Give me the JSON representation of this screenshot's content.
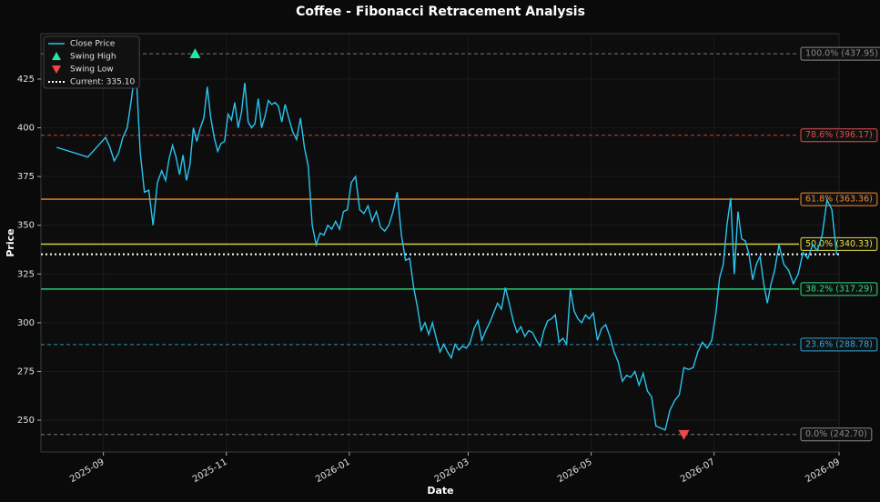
{
  "chart_data": {
    "type": "line",
    "title": "Coffee - Fibonacci Retracement Analysis",
    "x_label": "Date",
    "y_label": "Price",
    "x": [
      "2025-08",
      "2025-08",
      "2025-09",
      "2025-09",
      "2025-09",
      "2025-09",
      "2025-09",
      "2025-09",
      "2025-09",
      "2025-09",
      "2025-09",
      "2025-09",
      "2025-09",
      "2025-09",
      "2025-09",
      "2025-09",
      "2025-10",
      "2025-10",
      "2025-10",
      "2025-10",
      "2025-10",
      "2025-10",
      "2025-10",
      "2025-10",
      "2025-10",
      "2025-10",
      "2025-10",
      "2025-10",
      "2025-10",
      "2025-10",
      "2025-10",
      "2025-10",
      "2025-10",
      "2025-10",
      "2025-11",
      "2025-11",
      "2025-11",
      "2025-11",
      "2025-11",
      "2025-11",
      "2025-11",
      "2025-11",
      "2025-11",
      "2025-11",
      "2025-11",
      "2025-11",
      "2025-11",
      "2025-11",
      "2025-11",
      "2025-11",
      "2025-11",
      "2025-11",
      "2025-12",
      "2025-12",
      "2025-12",
      "2025-12",
      "2025-12",
      "2025-12",
      "2025-12",
      "2025-12",
      "2025-12",
      "2025-12",
      "2025-12",
      "2025-12",
      "2025-12",
      "2025-12",
      "2025-12",
      "2025-12",
      "2026-01",
      "2026-01",
      "2026-01",
      "2026-01",
      "2026-01",
      "2026-01",
      "2026-01",
      "2026-01",
      "2026-01",
      "2026-01",
      "2026-01",
      "2026-01",
      "2026-01",
      "2026-01",
      "2026-01",
      "2026-02",
      "2026-02",
      "2026-02",
      "2026-02",
      "2026-02",
      "2026-02",
      "2026-02",
      "2026-02",
      "2026-02",
      "2026-02",
      "2026-02",
      "2026-02",
      "2026-02",
      "2026-02",
      "2026-02",
      "2026-03",
      "2026-03",
      "2026-03",
      "2026-03",
      "2026-03",
      "2026-03",
      "2026-03",
      "2026-03",
      "2026-03",
      "2026-03",
      "2026-03",
      "2026-03",
      "2026-03",
      "2026-03",
      "2026-03",
      "2026-03",
      "2026-04",
      "2026-04",
      "2026-04",
      "2026-04",
      "2026-04",
      "2026-04",
      "2026-04",
      "2026-04",
      "2026-04",
      "2026-04",
      "2026-04",
      "2026-04",
      "2026-04",
      "2026-04",
      "2026-04",
      "2026-04",
      "2026-05",
      "2026-05",
      "2026-05",
      "2026-05",
      "2026-05",
      "2026-05",
      "2026-05",
      "2026-05",
      "2026-05",
      "2026-05",
      "2026-05",
      "2026-05",
      "2026-05",
      "2026-05",
      "2026-05",
      "2026-06",
      "2026-06",
      "2026-06",
      "2026-06",
      "2026-06",
      "2026-06",
      "2026-06",
      "2026-06",
      "2026-06",
      "2026-06",
      "2026-06",
      "2026-06",
      "2026-06",
      "2026-07",
      "2026-07",
      "2026-07",
      "2026-07",
      "2026-07",
      "2026-07",
      "2026-07",
      "2026-07",
      "2026-07",
      "2026-07",
      "2026-07",
      "2026-07",
      "2026-07",
      "2026-07",
      "2026-07",
      "2026-07",
      "2026-07",
      "2026-08",
      "2026-08",
      "2026-08",
      "2026-08",
      "2026-08",
      "2026-08",
      "2026-08",
      "2026-08",
      "2026-08",
      "2026-08",
      "2026-08",
      "2026-08",
      "2026-08"
    ],
    "series": [
      {
        "name": "Close Price",
        "color": "#29c5f0",
        "values": [
          390,
          385,
          395,
          390,
          383,
          387,
          395,
          400,
          415,
          432,
          388,
          367,
          368,
          350,
          372,
          378,
          373,
          384,
          391,
          385,
          376,
          386,
          373,
          381,
          400,
          393,
          400,
          405,
          421,
          405,
          395,
          388,
          392,
          393,
          407,
          404,
          413,
          400,
          408,
          423,
          403,
          400,
          402,
          415,
          400,
          406,
          414,
          412,
          413,
          411,
          403,
          412,
          405,
          398,
          394,
          405,
          390,
          380,
          350,
          340,
          346,
          345,
          350,
          348,
          352,
          348,
          357,
          358,
          372,
          375,
          358,
          356,
          360,
          352,
          357,
          349,
          347,
          350,
          357,
          367,
          345,
          332,
          333,
          318,
          308,
          296,
          300,
          294,
          300,
          292,
          285,
          289,
          285,
          282,
          289,
          286,
          288,
          287,
          290,
          297,
          301,
          291,
          296,
          300,
          305,
          310,
          307,
          318,
          310,
          301,
          295,
          298,
          293,
          296,
          295,
          291,
          288,
          296,
          301,
          302,
          304,
          290,
          292,
          289,
          317,
          306,
          302,
          300,
          304,
          302,
          305,
          291,
          297,
          299,
          293,
          285,
          280,
          270,
          273,
          272,
          275,
          268,
          274,
          265,
          262,
          247,
          246,
          245,
          255,
          260,
          263,
          277,
          276,
          277,
          285,
          290,
          287,
          291,
          305,
          323,
          330,
          350,
          364,
          325,
          357,
          343,
          342,
          335,
          322,
          330,
          334,
          320,
          310,
          320,
          327,
          340,
          330,
          327,
          320,
          325,
          336,
          333,
          340,
          337,
          345,
          363,
          358,
          335
        ]
      }
    ],
    "markers": [
      {
        "name": "Swing High",
        "x": "2025-10",
        "value": 437.95,
        "color": "#1de9a0",
        "shape": "up"
      },
      {
        "name": "Swing Low",
        "x": "2026-06",
        "value": 242.7,
        "color": "#f04848",
        "shape": "down"
      }
    ],
    "current": {
      "label": "Current: 335.10",
      "value": 335.1,
      "color": "#ffffff"
    },
    "levels": [
      {
        "label": "100.0% (437.95)",
        "value": 437.95,
        "color": "#8a8a8a",
        "style": "dashed"
      },
      {
        "label": "78.6% (396.17)",
        "value": 396.17,
        "color": "#e84c4c",
        "style": "dashed"
      },
      {
        "label": "61.8% (363.36)",
        "value": 363.36,
        "color": "#f08a30",
        "style": "solid"
      },
      {
        "label": "50.0% (340.33)",
        "value": 340.33,
        "color": "#e8e040",
        "style": "solid"
      },
      {
        "label": "38.2% (317.29)",
        "value": 317.29,
        "color": "#2edc7c",
        "style": "solid"
      },
      {
        "label": "23.6% (288.78)",
        "value": 288.78,
        "color": "#2ea8e0",
        "style": "dashed"
      },
      {
        "label": "0.0% (242.70)",
        "value": 242.7,
        "color": "#8a8a8a",
        "style": "dashed"
      }
    ],
    "xlim": [
      "2025-08",
      "2026-09"
    ],
    "xticks": [
      "2025-09",
      "2025-11",
      "2026-01",
      "2026-03",
      "2026-05",
      "2026-07",
      "2026-09"
    ],
    "ylim": [
      233.7,
      448.3
    ],
    "yticks": [
      250,
      275,
      300,
      325,
      350,
      375,
      400,
      425
    ],
    "grid": true,
    "legend": "upper left"
  }
}
